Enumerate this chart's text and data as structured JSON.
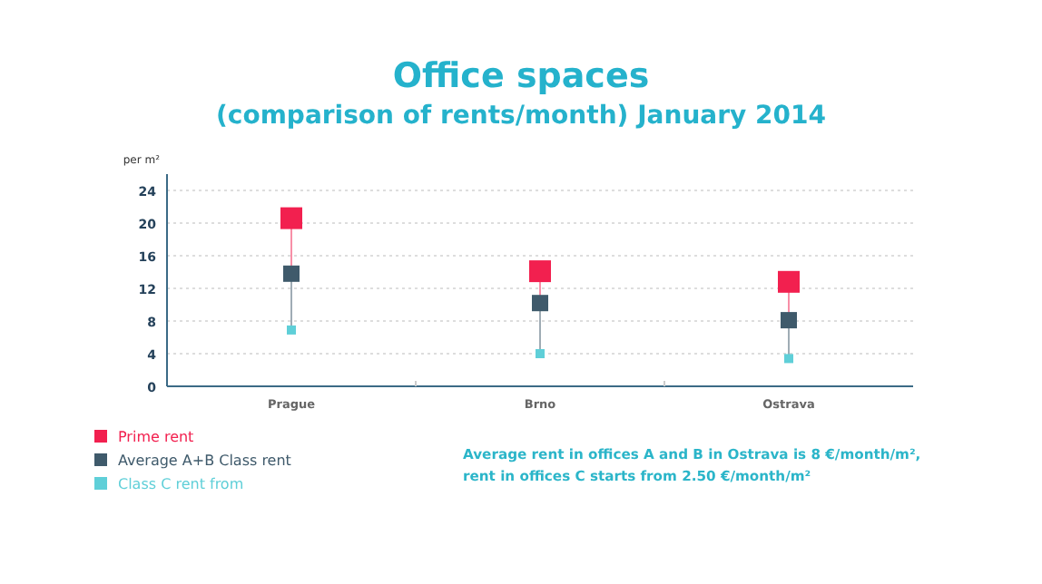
{
  "chart_data": {
    "type": "scatter",
    "title": "Office spaces",
    "subtitle": "(comparison of rents/month) January 2014",
    "ylabel": "per m²",
    "categories": [
      "Prague",
      "Brno",
      "Ostrava"
    ],
    "series": [
      {
        "name": "Prime rent",
        "color": "#f2204f",
        "values": [
          20.6,
          14.1,
          12.8
        ]
      },
      {
        "name": "Average A+B Class rent",
        "color": "#3f5a6b",
        "values": [
          13.8,
          10.2,
          8.1
        ]
      },
      {
        "name": "Class C rent from",
        "color": "#5fcfd8",
        "values": [
          6.9,
          4.0,
          3.4
        ]
      }
    ],
    "ylim": [
      0,
      26
    ],
    "yticks": [
      0,
      4,
      8,
      12,
      16,
      20,
      24
    ],
    "grid": "y",
    "legend": "bottom left",
    "marker": "square",
    "annotations": [
      "Average rent in offices A and B in Ostrava is 8 €/month/m², rent in offices C starts from 2.50 €/month/m²"
    ]
  }
}
